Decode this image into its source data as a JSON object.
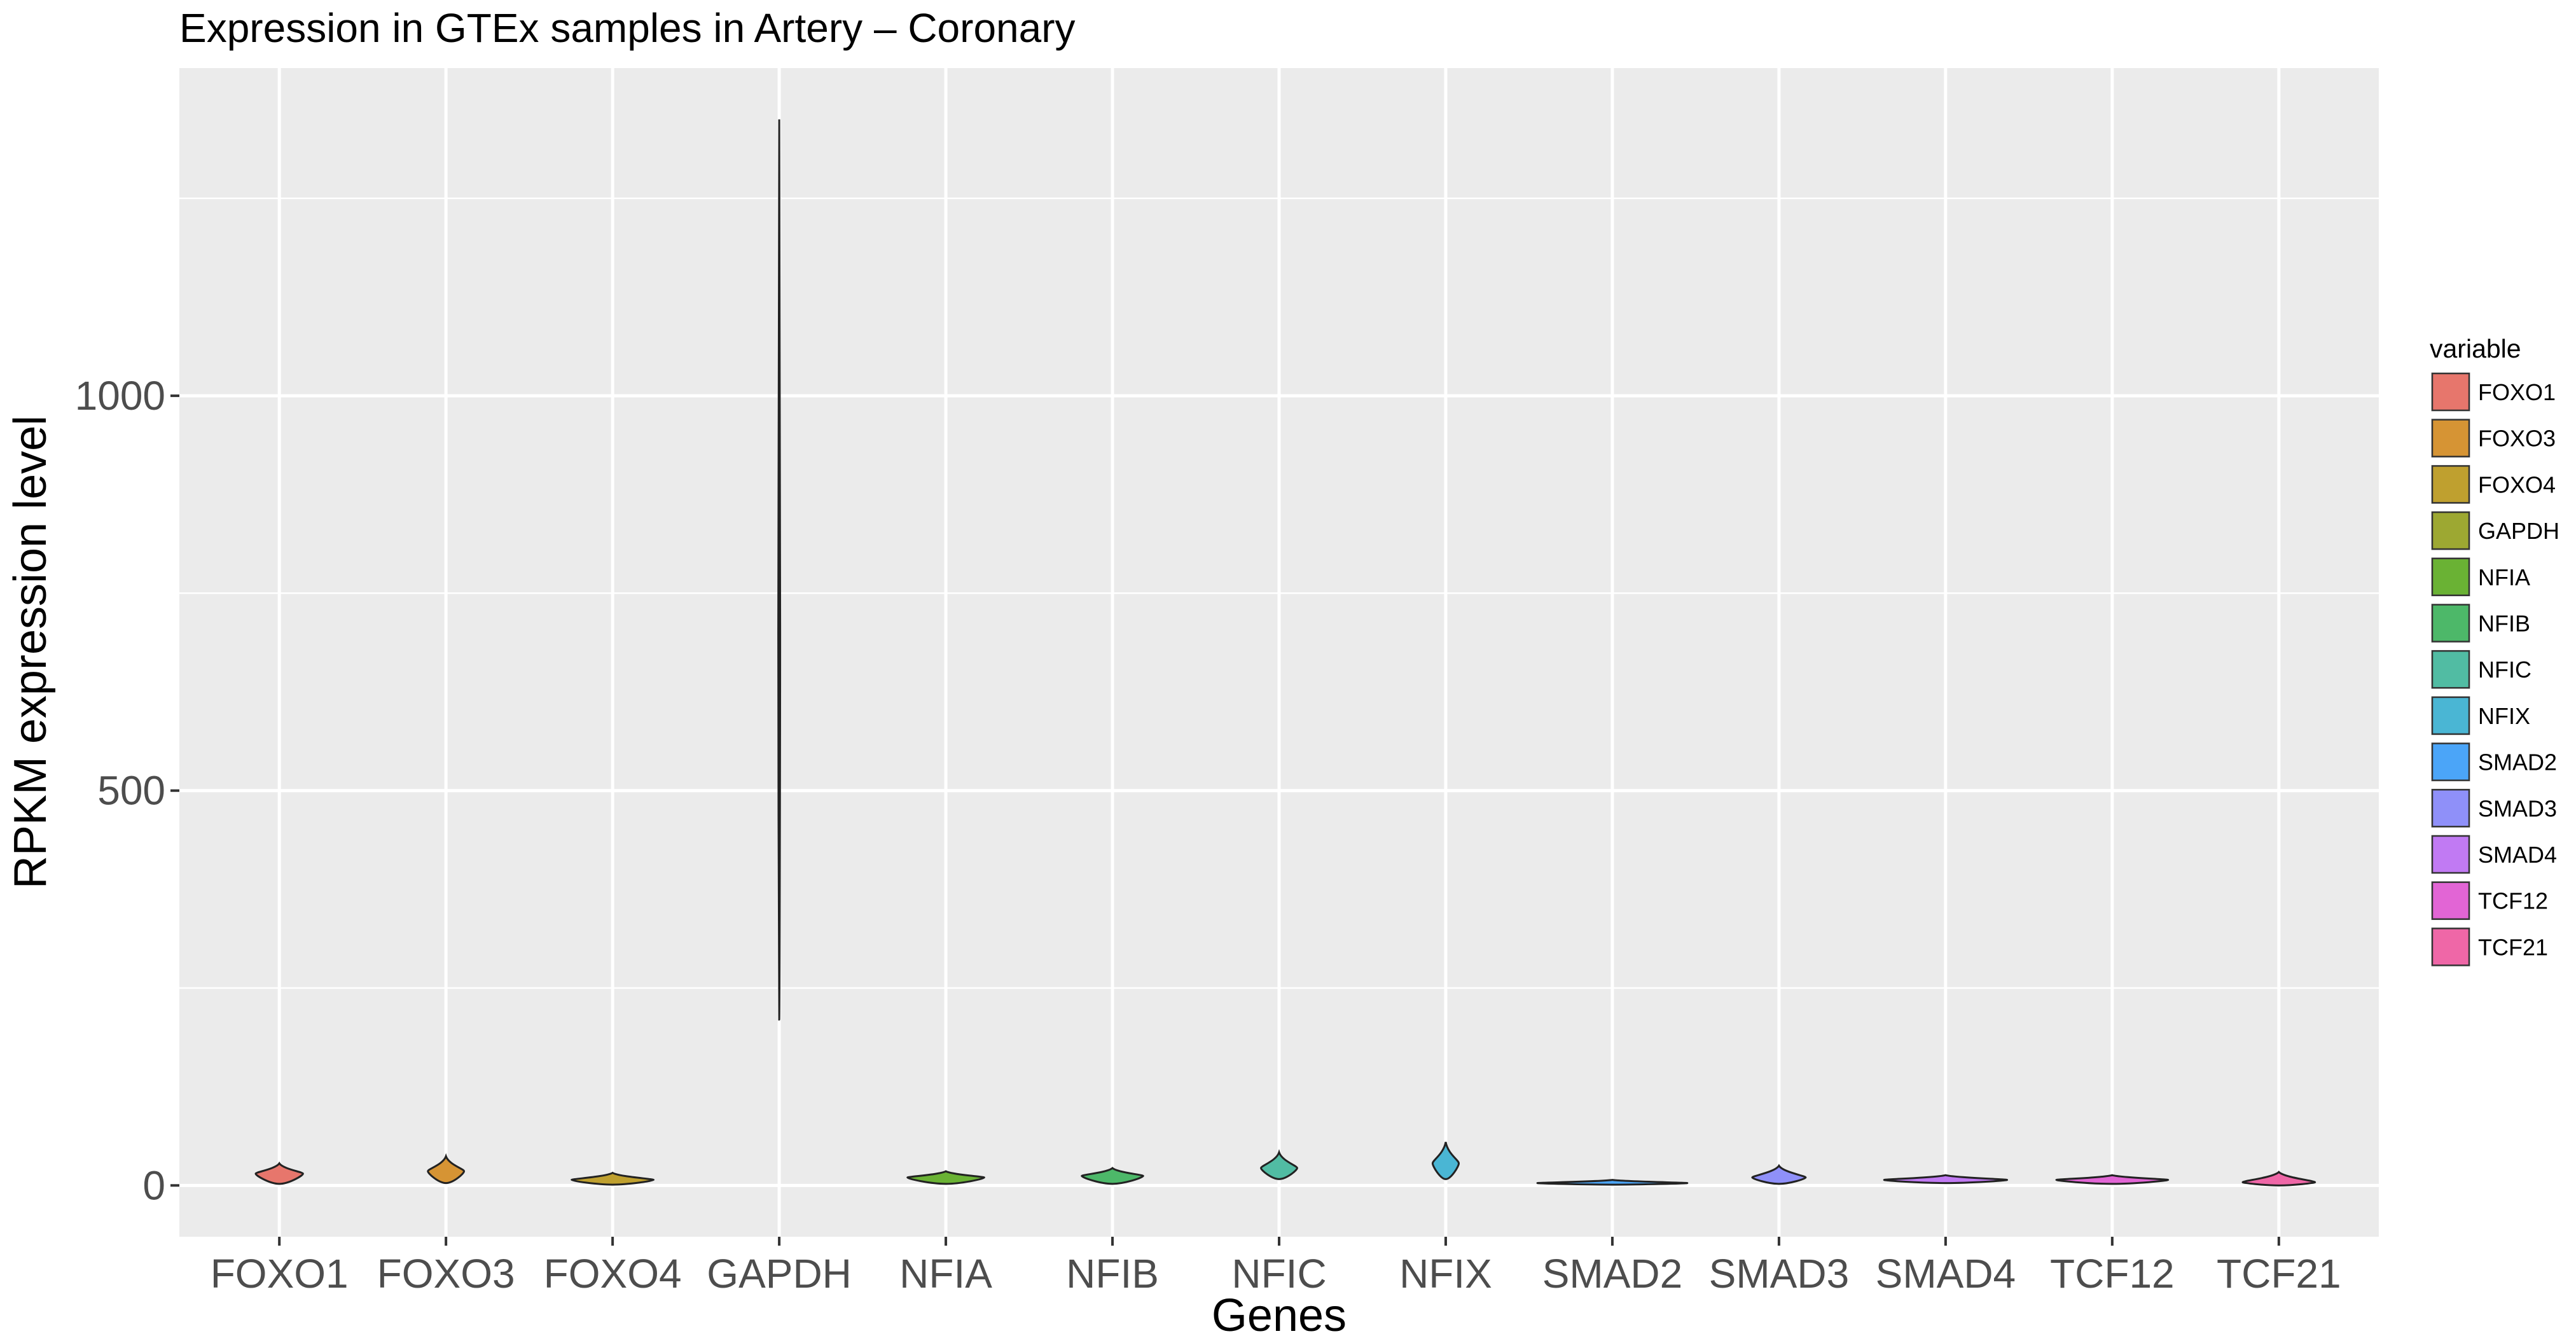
{
  "chart_data": {
    "type": "violin",
    "title": "Expression in GTEx samples in Artery – Coronary",
    "xlabel": "Genes",
    "ylabel": "RPKM expression level",
    "ylim": [
      -65,
      1415
    ],
    "yticks": [
      0,
      500,
      1000
    ],
    "grid": true,
    "legend": {
      "title": "variable",
      "placement": "right"
    },
    "categories": [
      "FOXO1",
      "FOXO3",
      "FOXO4",
      "GAPDH",
      "NFIA",
      "NFIB",
      "NFIC",
      "NFIX",
      "SMAD2",
      "SMAD3",
      "SMAD4",
      "TCF12",
      "TCF21"
    ],
    "series": [
      {
        "name": "FOXO1",
        "color": "#E7766C",
        "min": 2,
        "max": 28,
        "mode": 15
      },
      {
        "name": "FOXO3",
        "color": "#D69434",
        "min": 3,
        "max": 37,
        "mode": 18
      },
      {
        "name": "FOXO4",
        "color": "#BFA02F",
        "min": 1,
        "max": 16,
        "mode": 7
      },
      {
        "name": "GAPDH",
        "color": "#9DA832",
        "min": 210,
        "max": 1350,
        "mode": 700
      },
      {
        "name": "NFIA",
        "color": "#6AB234",
        "min": 2,
        "max": 18,
        "mode": 10
      },
      {
        "name": "NFIB",
        "color": "#4DB869",
        "min": 2,
        "max": 22,
        "mode": 12
      },
      {
        "name": "NFIC",
        "color": "#51BCA3",
        "min": 8,
        "max": 42,
        "mode": 22
      },
      {
        "name": "NFIX",
        "color": "#4AB6D4",
        "min": 8,
        "max": 55,
        "mode": 28
      },
      {
        "name": "SMAD2",
        "color": "#4BA5F8",
        "min": 1,
        "max": 7,
        "mode": 3
      },
      {
        "name": "SMAD3",
        "color": "#8F90F9",
        "min": 2,
        "max": 25,
        "mode": 10
      },
      {
        "name": "SMAD4",
        "color": "#C17AF3",
        "min": 3,
        "max": 13,
        "mode": 7
      },
      {
        "name": "TCF12",
        "color": "#E265D5",
        "min": 2,
        "max": 13,
        "mode": 7
      },
      {
        "name": "TCF21",
        "color": "#EF67A7",
        "min": 0,
        "max": 17,
        "mode": 4
      }
    ]
  }
}
